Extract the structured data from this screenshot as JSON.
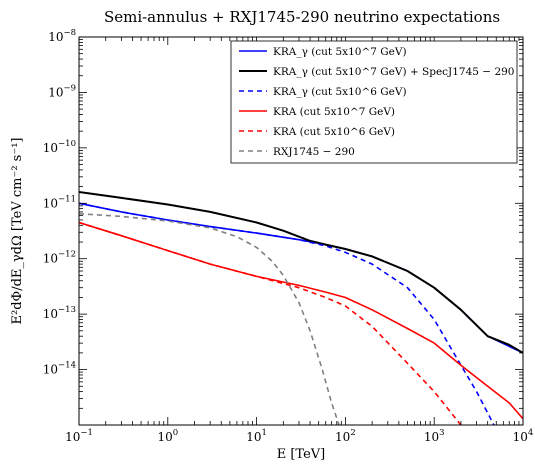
{
  "chart_data": {
    "type": "line",
    "title": "Semi-annulus + RXJ1745-290 neutrino expectations",
    "xlabel": "E [TeV]",
    "ylabel": "E²dΦ/dE_γdΩ [TeV cm⁻² s⁻¹]",
    "xscale": "log",
    "yscale": "log",
    "xlim": [
      0.1,
      10000
    ],
    "ylim": [
      1e-15,
      1e-08
    ],
    "x_ticks": [
      {
        "value": 0.1,
        "base": "10",
        "exp": "−1"
      },
      {
        "value": 1,
        "base": "10",
        "exp": "0"
      },
      {
        "value": 10,
        "base": "10",
        "exp": "1"
      },
      {
        "value": 100,
        "base": "10",
        "exp": "2"
      },
      {
        "value": 1000,
        "base": "10",
        "exp": "3"
      },
      {
        "value": 10000,
        "base": "10",
        "exp": "4"
      }
    ],
    "y_ticks": [
      {
        "value": 1e-14,
        "base": "10",
        "exp": "−14"
      },
      {
        "value": 1e-13,
        "base": "10",
        "exp": "−13"
      },
      {
        "value": 1e-12,
        "base": "10",
        "exp": "−12"
      },
      {
        "value": 1e-11,
        "base": "10",
        "exp": "−11"
      },
      {
        "value": 1e-10,
        "base": "10",
        "exp": "−10"
      },
      {
        "value": 1e-09,
        "base": "10",
        "exp": "−9"
      },
      {
        "value": 1e-08,
        "base": "10",
        "exp": "−8"
      }
    ],
    "legend_position": "top-right",
    "series": [
      {
        "name": "KRA_γ (cut 5x10^7 GeV)",
        "color": "#0000ff",
        "style": "solid",
        "width": 1.6,
        "points": [
          [
            0.1,
            1e-11
          ],
          [
            0.3,
            7e-12
          ],
          [
            1,
            5e-12
          ],
          [
            3,
            3.8e-12
          ],
          [
            10,
            2.9e-12
          ],
          [
            30,
            2.2e-12
          ],
          [
            60,
            1.8e-12
          ],
          [
            100,
            1.5e-12
          ],
          [
            200,
            1.1e-12
          ],
          [
            500,
            6e-13
          ],
          [
            1000,
            3e-13
          ],
          [
            2000,
            1.2e-13
          ],
          [
            4000,
            4e-14
          ],
          [
            10000,
            2e-14
          ]
        ]
      },
      {
        "name": "KRA_γ (cut 5x10^7 GeV) + SpecJ1745 − 290",
        "color": "#000000",
        "style": "solid",
        "width": 2.0,
        "points": [
          [
            0.1,
            1.6e-11
          ],
          [
            0.3,
            1.25e-11
          ],
          [
            1,
            9.5e-12
          ],
          [
            3,
            7e-12
          ],
          [
            10,
            4.5e-12
          ],
          [
            20,
            3.2e-12
          ],
          [
            40,
            2.1e-12
          ],
          [
            60,
            1.8e-12
          ],
          [
            100,
            1.5e-12
          ],
          [
            200,
            1.1e-12
          ],
          [
            500,
            6e-13
          ],
          [
            1000,
            3e-13
          ],
          [
            2000,
            1.2e-13
          ],
          [
            4000,
            4e-14
          ],
          [
            7000,
            2.8e-14
          ],
          [
            10000,
            2e-14
          ]
        ]
      },
      {
        "name": "KRA_γ (cut 5x10^6 GeV)",
        "color": "#0000ff",
        "style": "dashed",
        "width": 1.6,
        "points": [
          [
            0.1,
            1e-11
          ],
          [
            0.3,
            7e-12
          ],
          [
            1,
            5e-12
          ],
          [
            3,
            3.8e-12
          ],
          [
            10,
            2.9e-12
          ],
          [
            30,
            2.2e-12
          ],
          [
            60,
            1.7e-12
          ],
          [
            100,
            1.3e-12
          ],
          [
            200,
            8e-13
          ],
          [
            500,
            3e-13
          ],
          [
            1000,
            8e-14
          ],
          [
            2000,
            1.2e-14
          ],
          [
            3000,
            4e-15
          ],
          [
            4700,
            1e-15
          ]
        ]
      },
      {
        "name": "KRA (cut 5x10^7 GeV)",
        "color": "#ff0000",
        "style": "solid",
        "width": 1.6,
        "points": [
          [
            0.1,
            4.5e-12
          ],
          [
            0.3,
            2.6e-12
          ],
          [
            1,
            1.4e-12
          ],
          [
            3,
            8e-13
          ],
          [
            10,
            4.8e-13
          ],
          [
            30,
            3.3e-13
          ],
          [
            60,
            2.5e-13
          ],
          [
            100,
            2e-13
          ],
          [
            200,
            1.2e-13
          ],
          [
            500,
            5.5e-14
          ],
          [
            1000,
            3e-14
          ],
          [
            2000,
            1.2e-14
          ],
          [
            4000,
            5e-15
          ],
          [
            7000,
            2.5e-15
          ],
          [
            10000,
            1.3e-15
          ]
        ]
      },
      {
        "name": "KRA (cut 5x10^6 GeV)",
        "color": "#ff0000",
        "style": "dashed",
        "width": 1.6,
        "points": [
          [
            0.1,
            4.5e-12
          ],
          [
            0.3,
            2.6e-12
          ],
          [
            1,
            1.4e-12
          ],
          [
            3,
            8e-13
          ],
          [
            10,
            4.8e-13
          ],
          [
            30,
            3e-13
          ],
          [
            60,
            2e-13
          ],
          [
            100,
            1.4e-13
          ],
          [
            200,
            6e-14
          ],
          [
            500,
            1.3e-14
          ],
          [
            1000,
            4e-15
          ],
          [
            2000,
            1e-15
          ]
        ]
      },
      {
        "name": "RXJ1745 − 290",
        "color": "#808080",
        "style": "dashed",
        "width": 1.6,
        "points": [
          [
            0.1,
            6.5e-12
          ],
          [
            0.3,
            5.8e-12
          ],
          [
            1,
            4.8e-12
          ],
          [
            3,
            3.6e-12
          ],
          [
            6,
            2.5e-12
          ],
          [
            10,
            1.6e-12
          ],
          [
            15,
            9e-13
          ],
          [
            20,
            5e-13
          ],
          [
            30,
            1.6e-13
          ],
          [
            40,
            5e-14
          ],
          [
            55,
            1e-14
          ],
          [
            70,
            2.5e-15
          ],
          [
            85,
            1e-15
          ]
        ]
      }
    ]
  }
}
